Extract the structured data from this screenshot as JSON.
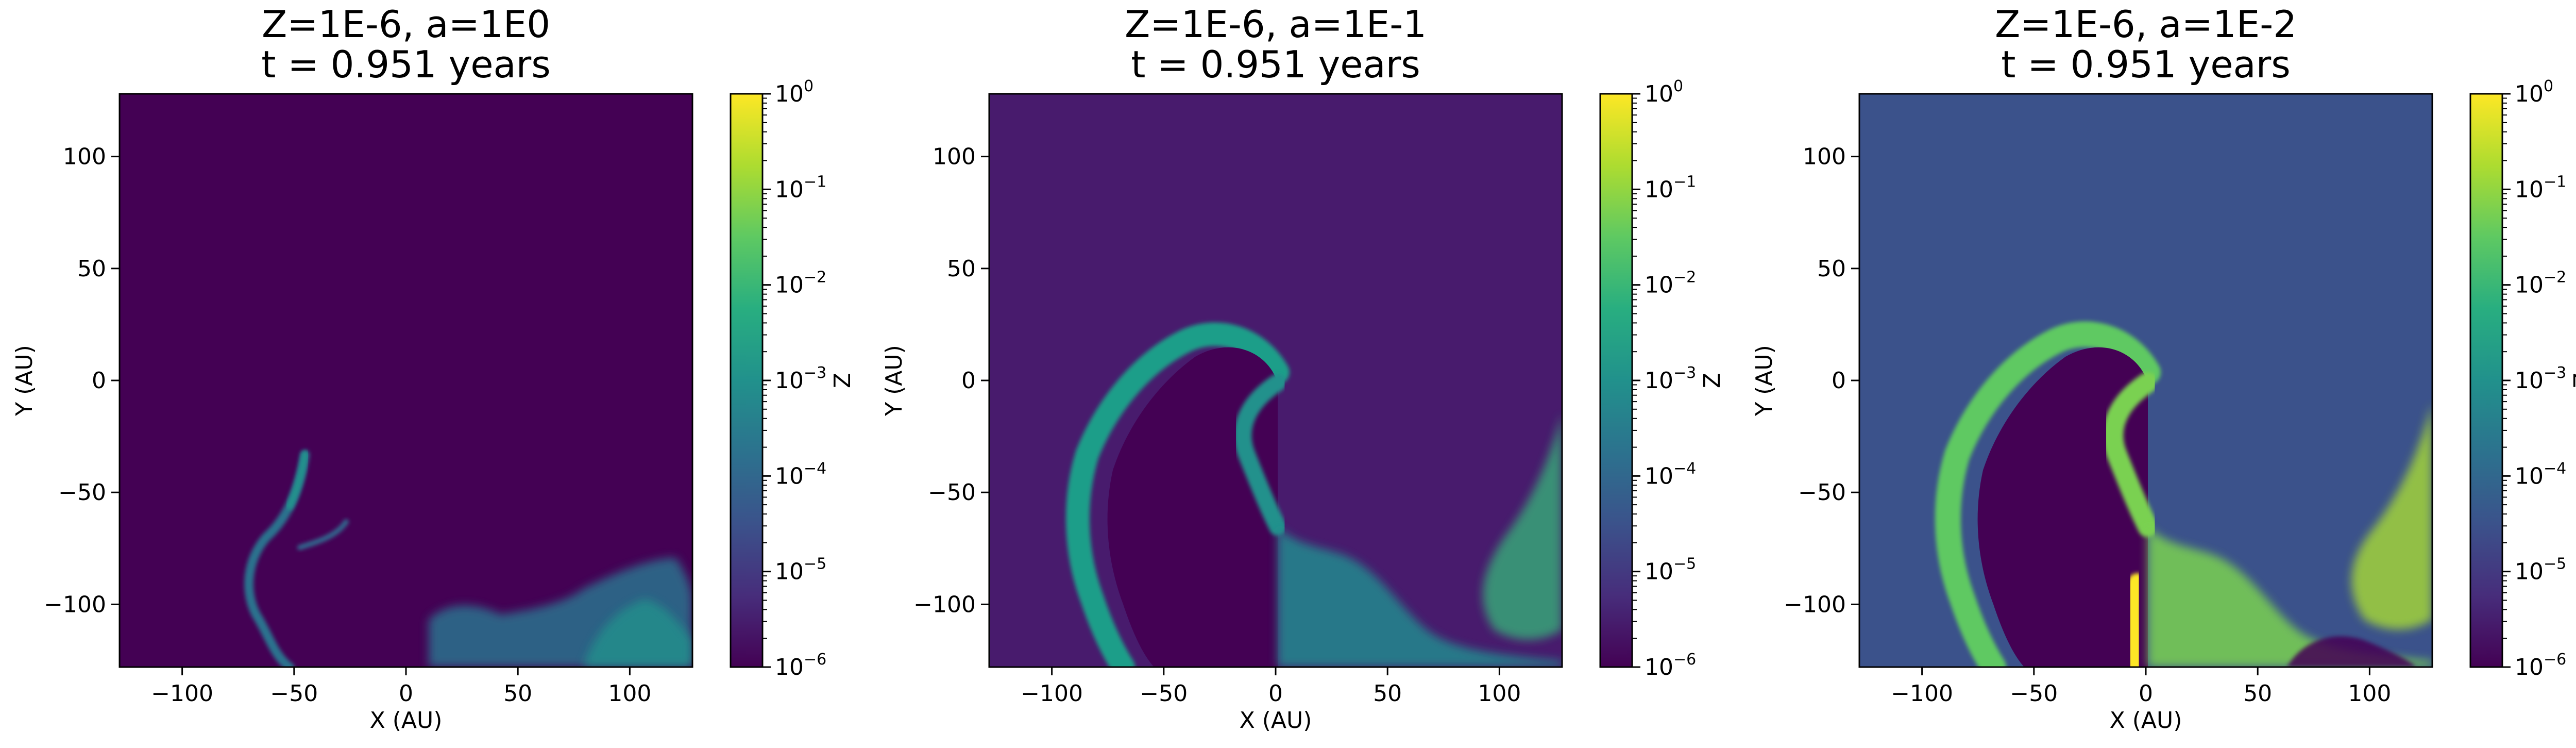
{
  "colors": {
    "viridis_low": "#440154",
    "viridis_mid": "#21918c",
    "viridis_high": "#fde725",
    "axis": "#000000"
  },
  "chart_data": [
    {
      "type": "heatmap",
      "title": "Z=1E-6, a=1E0",
      "subtitle": "t = 0.951 years",
      "xlabel": "X (AU)",
      "ylabel": "Y (AU)",
      "xlim": [
        -128,
        128
      ],
      "ylim": [
        -128,
        128
      ],
      "x_ticks": [
        "−100",
        "−50",
        "0",
        "50",
        "100"
      ],
      "x_tick_values": [
        -100,
        -50,
        0,
        50,
        100
      ],
      "y_ticks": [
        "100",
        "50",
        "0",
        "−50",
        "−100"
      ],
      "y_tick_values": [
        100,
        50,
        0,
        -50,
        -100
      ],
      "colorbar": {
        "label": "Z",
        "scale": "log",
        "range": [
          1e-06,
          1
        ],
        "tick_exponents": [
          "0",
          "−1",
          "−2",
          "−3",
          "−4",
          "−5",
          "−6"
        ],
        "tick_values": [
          0,
          -1,
          -2,
          -3,
          -4,
          -5,
          -6
        ]
      },
      "background_log_z": -6
    },
    {
      "type": "heatmap",
      "title": "Z=1E-6, a=1E-1",
      "subtitle": "t = 0.951 years",
      "xlabel": "X (AU)",
      "ylabel": "Y (AU)",
      "xlim": [
        -128,
        128
      ],
      "ylim": [
        -128,
        128
      ],
      "x_ticks": [
        "−100",
        "−50",
        "0",
        "50",
        "100"
      ],
      "x_tick_values": [
        -100,
        -50,
        0,
        50,
        100
      ],
      "y_ticks": [
        "100",
        "50",
        "0",
        "−50",
        "−100"
      ],
      "y_tick_values": [
        100,
        50,
        0,
        -50,
        -100
      ],
      "colorbar": {
        "label": "Z",
        "scale": "log",
        "range": [
          1e-06,
          1
        ],
        "tick_exponents": [
          "0",
          "−1",
          "−2",
          "−3",
          "−4",
          "−5",
          "−6"
        ],
        "tick_values": [
          0,
          -1,
          -2,
          -3,
          -4,
          -5,
          -6
        ]
      },
      "background_log_z": -5.5
    },
    {
      "type": "heatmap",
      "title": "Z=1E-6, a=1E-2",
      "subtitle": "t = 0.951 years",
      "xlabel": "X (AU)",
      "ylabel": "Y (AU)",
      "xlim": [
        -128,
        128
      ],
      "ylim": [
        -128,
        128
      ],
      "x_ticks": [
        "−100",
        "−50",
        "0",
        "50",
        "100"
      ],
      "x_tick_values": [
        -100,
        -50,
        0,
        50,
        100
      ],
      "y_ticks": [
        "100",
        "50",
        "0",
        "−50",
        "−100"
      ],
      "y_tick_values": [
        100,
        50,
        0,
        -50,
        -100
      ],
      "colorbar": {
        "label": "Z",
        "scale": "log",
        "range": [
          1e-06,
          1
        ],
        "tick_exponents": [
          "0",
          "−1",
          "−2",
          "−3",
          "−4",
          "−5",
          "−6"
        ],
        "tick_values": [
          0,
          -1,
          -2,
          -3,
          -4,
          -5,
          -6
        ]
      },
      "background_log_z": -4.3
    }
  ]
}
